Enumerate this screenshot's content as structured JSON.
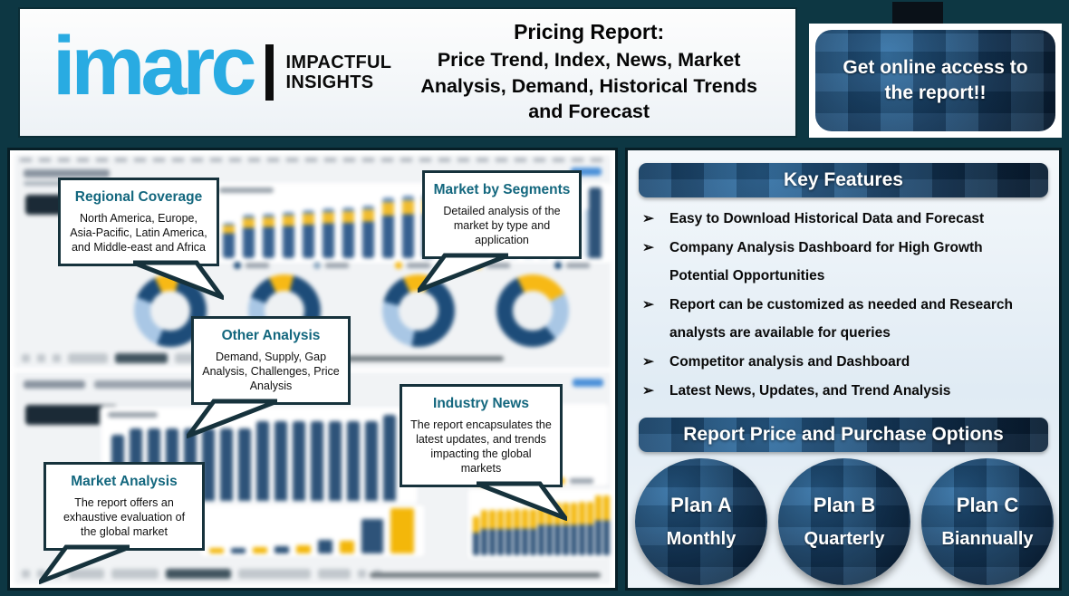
{
  "header": {
    "logo": {
      "brand": "imarc",
      "tagline_line1": "IMPACTFUL",
      "tagline_line2": "INSIGHTS"
    },
    "title_line1": "Pricing Report:",
    "title_line2": "Price Trend, Index, News, Market Analysis, Demand, Historical Trends and Forecast",
    "cta_label": "Get online access to the report!!"
  },
  "callouts": [
    {
      "title": "Regional Coverage",
      "body": "North America, Europe, Asia-Pacific, Latin America, and Middle-east and Africa"
    },
    {
      "title": "Market by Segments",
      "body": "Detailed analysis of the market by type and application"
    },
    {
      "title": "Other Analysis",
      "body": "Demand, Supply, Gap Analysis, Challenges, Price Analysis"
    },
    {
      "title": "Industry News",
      "body": "The report encapsulates the latest updates, and trends impacting the global markets"
    },
    {
      "title": "Market Analysis",
      "body": "The report offers an exhaustive evaluation of the global market"
    }
  ],
  "key_features": {
    "heading": "Key Features",
    "bullet_glyph": "➢",
    "items": [
      "Easy to Download Historical Data and Forecast",
      "Company Analysis Dashboard for High Growth Potential Opportunities",
      "Report can be customized as needed and Research analysts are available for queries",
      "Competitor analysis and Dashboard",
      "Latest News, Updates, and Trend Analysis"
    ]
  },
  "purchase_options": {
    "heading": "Report Price and Purchase Options",
    "plans": [
      {
        "name": "Plan A",
        "period": "Monthly"
      },
      {
        "name": "Plan B",
        "period": "Quarterly"
      },
      {
        "name": "Plan C",
        "period": "Biannually"
      }
    ]
  },
  "colors": {
    "brand_blue": "#29abe2",
    "background_teal": "#0d3743",
    "navy_dark": "#0a1e33",
    "accent_yellow": "#f3b70a",
    "chart_navy": "#2e5379",
    "chart_light_blue": "#b9cfe4",
    "callout_title_teal": "#13677e",
    "callout_border": "#16323c"
  }
}
